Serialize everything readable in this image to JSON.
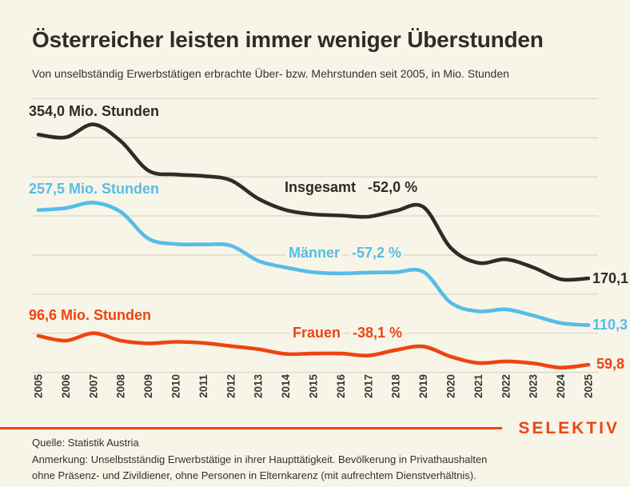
{
  "header": {
    "title": "Österreicher leisten immer weniger Überstunden",
    "subtitle": "Von unselbständig Erwerbstätigen erbrachte Über- bzw. Mehrstunden seit 2005, in Mio. Stunden"
  },
  "colors": {
    "background": "#f7f4e8",
    "total": "#2e2c28",
    "men": "#55bde6",
    "women": "#ee4411",
    "grid": "#d9d6c8",
    "axis_labels": "#3a3833",
    "accent": "#ee4411"
  },
  "chart_data": {
    "type": "line",
    "title": "Österreicher leisten immer weniger Überstunden",
    "subtitle": "Von unselbständig Erwerbstätigen erbrachte Über- bzw. Mehrstunden seit 2005, in Mio. Stunden",
    "unit": "Mio. Stunden",
    "grid": true,
    "legend_position": "inline-labels",
    "ylim": [
      50,
      400
    ],
    "y_gridlines": [
      400,
      350,
      300,
      250,
      200,
      150,
      100,
      50
    ],
    "x": [
      2005,
      2006,
      2007,
      2008,
      2009,
      2010,
      2011,
      2012,
      2013,
      2014,
      2015,
      2016,
      2017,
      2018,
      2019,
      2020,
      2021,
      2022,
      2023,
      2024,
      2025
    ],
    "series": [
      {
        "name": "Insgesamt",
        "color": "total",
        "change_pct": "-52,0 %",
        "start_label": "354,0 Mio. Stunden",
        "end_label": "170,1",
        "values": [
          354.0,
          350.5,
          367.0,
          345.5,
          308.0,
          303.0,
          301.0,
          295.5,
          272.0,
          257.5,
          252.0,
          250.5,
          249.0,
          256.5,
          261.5,
          209.0,
          190.0,
          194.5,
          184.0,
          169.0,
          170.1
        ]
      },
      {
        "name": "Männer",
        "color": "men",
        "change_pct": "-57,2 %",
        "start_label": "257,5 Mio. Stunden",
        "end_label": "110,3",
        "values": [
          257.5,
          260.0,
          267.0,
          255.0,
          221.0,
          214.0,
          213.5,
          212.0,
          192.5,
          184.0,
          178.0,
          176.5,
          177.5,
          178.0,
          178.5,
          139.0,
          128.0,
          130.5,
          122.5,
          113.0,
          110.3
        ]
      },
      {
        "name": "Frauen",
        "color": "women",
        "change_pct": "-38,1 %",
        "start_label": "96,6 Mio. Stunden",
        "end_label": "59,8",
        "values": [
          96.6,
          90.5,
          100.0,
          90.5,
          87.0,
          89.0,
          87.5,
          83.5,
          79.5,
          73.5,
          74.0,
          74.0,
          71.5,
          78.5,
          83.0,
          70.0,
          62.0,
          64.0,
          61.5,
          56.0,
          59.8
        ]
      }
    ]
  },
  "footer": {
    "brand": "SELEKTIV",
    "source": "Quelle: Statistik Austria",
    "note_line1": "Anmerkung: Unselbstständig Erwerbstätige in ihrer Haupttätigkeit. Bevölkerung in Privathaushalten",
    "note_line2": "ohne Präsenz- und Zivildiener, ohne Personen in Elternkarenz (mit aufrechtem Dienstverhältnis)."
  }
}
